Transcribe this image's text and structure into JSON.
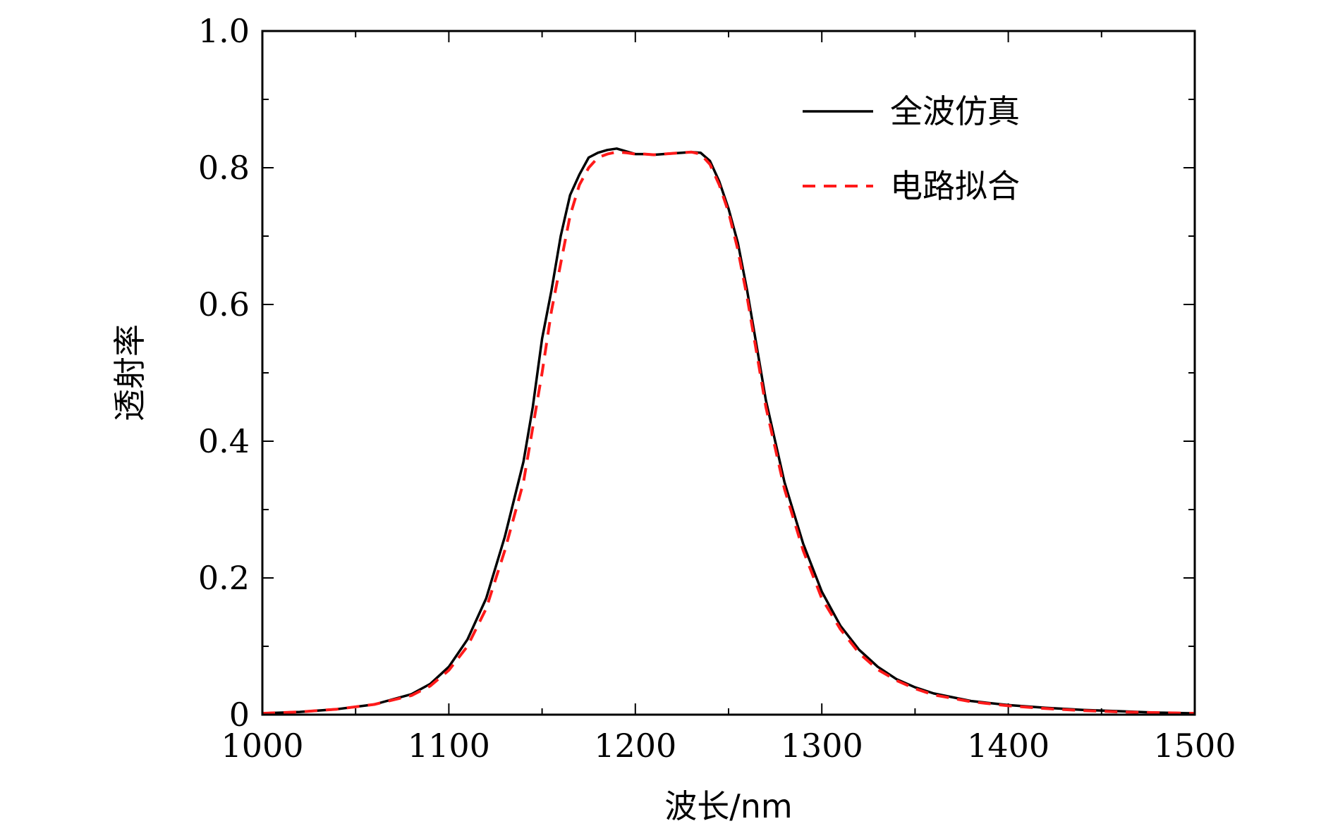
{
  "chart_data": {
    "type": "line",
    "xlabel": "波长/nm",
    "ylabel": "透射率",
    "xlim": [
      1000,
      1500
    ],
    "ylim": [
      0,
      1.0
    ],
    "x_ticks": [
      1000,
      1100,
      1200,
      1300,
      1400,
      1500
    ],
    "x_tick_labels": [
      "1000",
      "1100",
      "1200",
      "1300",
      "1400",
      "1500"
    ],
    "y_ticks": [
      0,
      0.2,
      0.4,
      0.6,
      0.8,
      1.0
    ],
    "y_tick_labels": [
      "0",
      "0.2",
      "0.4",
      "0.6",
      "0.8",
      "1.0"
    ],
    "grid": false,
    "legend_position": "top-right",
    "series": [
      {
        "name": "全波仿真",
        "color": "#000000",
        "dash": "solid",
        "x": [
          1000,
          1020,
          1040,
          1060,
          1080,
          1090,
          1100,
          1110,
          1120,
          1130,
          1140,
          1145,
          1150,
          1155,
          1160,
          1165,
          1170,
          1175,
          1180,
          1185,
          1190,
          1195,
          1200,
          1205,
          1210,
          1215,
          1220,
          1225,
          1230,
          1235,
          1240,
          1245,
          1250,
          1255,
          1260,
          1265,
          1270,
          1275,
          1280,
          1290,
          1300,
          1310,
          1320,
          1330,
          1340,
          1350,
          1360,
          1380,
          1400,
          1420,
          1440,
          1460,
          1480,
          1500
        ],
        "y": [
          0.002,
          0.004,
          0.008,
          0.015,
          0.03,
          0.045,
          0.07,
          0.11,
          0.17,
          0.26,
          0.37,
          0.45,
          0.55,
          0.62,
          0.7,
          0.76,
          0.79,
          0.815,
          0.822,
          0.826,
          0.828,
          0.824,
          0.82,
          0.82,
          0.819,
          0.82,
          0.821,
          0.822,
          0.823,
          0.822,
          0.81,
          0.78,
          0.74,
          0.69,
          0.62,
          0.54,
          0.46,
          0.4,
          0.34,
          0.25,
          0.18,
          0.13,
          0.095,
          0.07,
          0.052,
          0.04,
          0.031,
          0.02,
          0.014,
          0.01,
          0.007,
          0.005,
          0.003,
          0.002
        ]
      },
      {
        "name": "电路拟合",
        "color": "#ff1a1a",
        "dash": "dashed",
        "x": [
          1000,
          1020,
          1040,
          1060,
          1080,
          1090,
          1100,
          1110,
          1120,
          1130,
          1140,
          1145,
          1150,
          1155,
          1160,
          1165,
          1170,
          1175,
          1180,
          1185,
          1190,
          1195,
          1200,
          1205,
          1210,
          1215,
          1220,
          1225,
          1230,
          1235,
          1240,
          1245,
          1250,
          1255,
          1260,
          1265,
          1270,
          1275,
          1280,
          1290,
          1300,
          1310,
          1320,
          1330,
          1340,
          1350,
          1360,
          1380,
          1400,
          1420,
          1440,
          1460,
          1480,
          1500
        ],
        "y": [
          0.002,
          0.004,
          0.008,
          0.015,
          0.028,
          0.042,
          0.065,
          0.1,
          0.155,
          0.24,
          0.34,
          0.42,
          0.5,
          0.59,
          0.66,
          0.73,
          0.775,
          0.8,
          0.815,
          0.82,
          0.823,
          0.822,
          0.82,
          0.82,
          0.819,
          0.82,
          0.821,
          0.822,
          0.823,
          0.82,
          0.805,
          0.775,
          0.735,
          0.68,
          0.61,
          0.53,
          0.45,
          0.39,
          0.33,
          0.24,
          0.17,
          0.125,
          0.09,
          0.066,
          0.05,
          0.038,
          0.029,
          0.019,
          0.013,
          0.009,
          0.006,
          0.004,
          0.003,
          0.002
        ]
      }
    ]
  }
}
